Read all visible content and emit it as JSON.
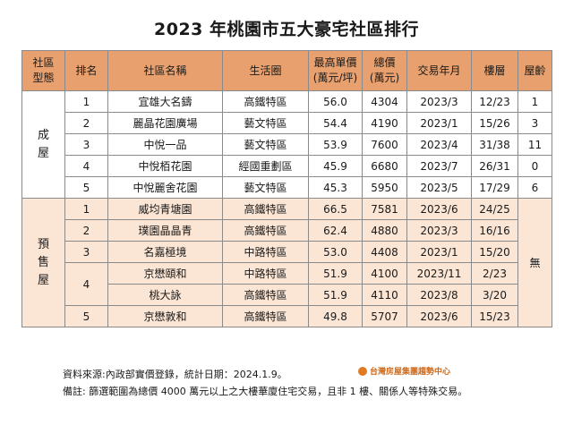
{
  "title": "2023 年桃園市五大豪宅社區排行",
  "headers": {
    "type": "社區\n型態",
    "rank": "排名",
    "name": "社區名稱",
    "area": "生活圈",
    "unit_price": "最高單價\n(萬元/坪)",
    "total": "總價\n(萬元)",
    "date": "交易年月",
    "floor": "樓層",
    "age": "屋齡"
  },
  "categories": {
    "existing": "成\n屋",
    "presale": "預\n售\n屋"
  },
  "existing_rows": [
    {
      "rank": "1",
      "name": "宜雄大名鑄",
      "area": "高鐵特區",
      "unit_price": "56.0",
      "total": "4304",
      "date": "2023/3",
      "floor": "12/23",
      "age": "1"
    },
    {
      "rank": "2",
      "name": "麗晶花園廣場",
      "area": "藝文特區",
      "unit_price": "54.4",
      "total": "4190",
      "date": "2023/1",
      "floor": "15/26",
      "age": "3"
    },
    {
      "rank": "3",
      "name": "中悅一品",
      "area": "藝文特區",
      "unit_price": "53.9",
      "total": "7600",
      "date": "2023/4",
      "floor": "31/38",
      "age": "11"
    },
    {
      "rank": "4",
      "name": "中悅栢花園",
      "area": "經國重劃區",
      "unit_price": "45.9",
      "total": "6680",
      "date": "2023/7",
      "floor": "26/31",
      "age": "0"
    },
    {
      "rank": "5",
      "name": "中悅麗舍花園",
      "area": "藝文特區",
      "unit_price": "45.3",
      "total": "5950",
      "date": "2023/5",
      "floor": "17/29",
      "age": "6"
    }
  ],
  "presale_rows": [
    {
      "rank": "1",
      "name": "威均青塘園",
      "area": "高鐵特區",
      "unit_price": "66.5",
      "total": "7581",
      "date": "2023/6",
      "floor": "24/25"
    },
    {
      "rank": "2",
      "name": "璞園晶晶青",
      "area": "高鐵特區",
      "unit_price": "62.4",
      "total": "4880",
      "date": "2023/3",
      "floor": "16/16"
    },
    {
      "rank": "3",
      "name": "名嘉極境",
      "area": "中路特區",
      "unit_price": "53.0",
      "total": "4408",
      "date": "2023/1",
      "floor": "15/20"
    },
    {
      "rank": "4",
      "name": "京懋頤和",
      "area": "中路特區",
      "unit_price": "51.9",
      "total": "4100",
      "date": "2023/11",
      "floor": "2/23"
    },
    {
      "rank": "",
      "name": "桃大詠",
      "area": "高鐵特區",
      "unit_price": "51.9",
      "total": "4110",
      "date": "2023/8",
      "floor": "3/20"
    },
    {
      "rank": "5",
      "name": "京懋敦和",
      "area": "高鐵特區",
      "unit_price": "49.8",
      "total": "5707",
      "date": "2023/6",
      "floor": "15/23"
    }
  ],
  "presale_age": "無",
  "notes": {
    "source": "資料來源:內政部實價登錄，統計日期：2024.1.9。",
    "remark": "備註: 篩選範圍為總價 4000 萬元以上之大樓華廈住宅交易，且非 1 樓、關係人等特殊交易。"
  },
  "logo": "台灣房屋集團趨勢中心",
  "colors": {
    "header_bg": "#e8a06e",
    "presale_bg": "#fbe5d4",
    "logo": "#d06a1a"
  }
}
